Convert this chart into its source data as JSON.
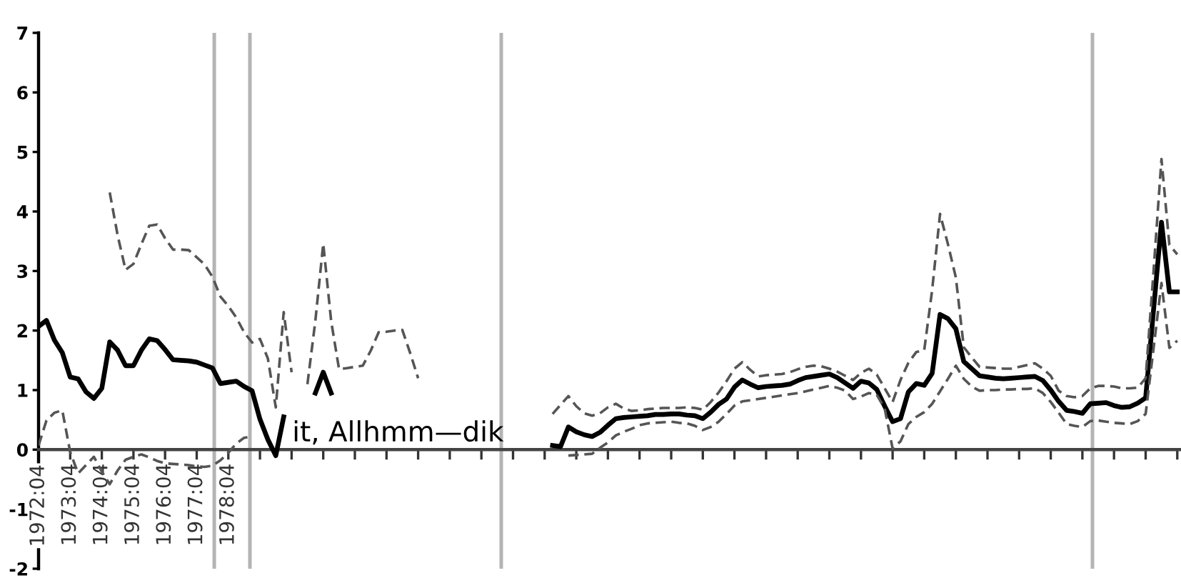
{
  "chart_data": {
    "type": "line",
    "categories": [
      "1972:04",
      null,
      null,
      null,
      "1973:04",
      null,
      null,
      null,
      "1974:04",
      null,
      null,
      null,
      "1975:04",
      null,
      null,
      null,
      "1976:04",
      null,
      null,
      null,
      "1977:04",
      null,
      null,
      null,
      "1978:04",
      null,
      null,
      null,
      null,
      null,
      null,
      null,
      null,
      null,
      null,
      null,
      null,
      null,
      null,
      null,
      null,
      null,
      null,
      null,
      null,
      null,
      null,
      null,
      null,
      null,
      null,
      null,
      null,
      null,
      null,
      null,
      null,
      null,
      null,
      null,
      null,
      null,
      null,
      null,
      null,
      null,
      null,
      null,
      null,
      null,
      null,
      null,
      null,
      null,
      null,
      null,
      null,
      null,
      null,
      null,
      null,
      null,
      null,
      null,
      null,
      null,
      null,
      null,
      null,
      null,
      null,
      null,
      null,
      null,
      null,
      null,
      null,
      null,
      null,
      null,
      null,
      null,
      null,
      null,
      null,
      null,
      null,
      null,
      null,
      null,
      null,
      null,
      null,
      null,
      null,
      null,
      null,
      null,
      null,
      null,
      null,
      null,
      null,
      null,
      null,
      null,
      null,
      null,
      null,
      null,
      null,
      null,
      null,
      null,
      null,
      null,
      null,
      null,
      null,
      null,
      null,
      null,
      null,
      null,
      null
    ],
    "ylim": [
      -2,
      7
    ],
    "yticks": [
      -2,
      -1,
      0,
      1,
      2,
      3,
      4,
      5,
      6,
      7
    ],
    "annotations": [
      "it, Allhmm—dik"
    ],
    "series": [
      {
        "color": "#000000",
        "line_style": "solid",
        "values": [
          2.07,
          2.17,
          1.84,
          1.63,
          1.22,
          1.19,
          0.97,
          0.86,
          1.03,
          1.81,
          1.67,
          1.41,
          1.41,
          1.67,
          1.86,
          1.83,
          1.68,
          1.51,
          1.5,
          1.49,
          1.47,
          1.42,
          1.37,
          1.11,
          1.13,
          1.15,
          1.06,
          0.99,
          0.51,
          0.17,
          -0.1,
          0.55,
          null,
          null,
          null,
          0.95,
          1.3,
          0.95,
          null,
          null,
          null,
          null,
          null,
          null,
          null,
          null,
          null,
          null,
          null,
          null,
          null,
          null,
          null,
          null,
          null,
          null,
          null,
          null,
          null,
          null,
          null,
          null,
          null,
          null,
          null,
          0.07,
          0.05,
          0.38,
          0.3,
          0.25,
          0.22,
          0.29,
          0.41,
          0.52,
          0.54,
          0.55,
          0.56,
          0.57,
          0.59,
          0.59,
          0.6,
          0.6,
          0.58,
          0.57,
          0.52,
          0.63,
          0.76,
          0.85,
          1.05,
          1.17,
          1.1,
          1.04,
          1.06,
          1.07,
          1.08,
          1.1,
          1.16,
          1.21,
          1.23,
          1.25,
          1.27,
          1.21,
          1.12,
          1.03,
          1.15,
          1.12,
          1.01,
          0.73,
          0.47,
          0.52,
          0.97,
          1.11,
          1.08,
          1.28,
          2.27,
          2.2,
          2.03,
          1.48,
          1.36,
          1.24,
          1.22,
          1.2,
          1.19,
          1.2,
          1.21,
          1.22,
          1.23,
          1.16,
          1.0,
          0.81,
          0.66,
          0.64,
          0.61,
          0.77,
          0.78,
          0.79,
          0.74,
          0.71,
          0.72,
          0.78,
          0.87,
          2.35,
          3.82,
          2.65,
          2.65
        ]
      },
      {
        "color": "#555555",
        "line_style": "dashed",
        "values": [
          null,
          null,
          null,
          null,
          null,
          null,
          null,
          null,
          null,
          4.32,
          3.6,
          3.02,
          3.12,
          3.45,
          3.76,
          3.78,
          3.55,
          3.36,
          3.36,
          3.35,
          3.23,
          3.11,
          2.9,
          2.57,
          2.41,
          2.22,
          1.97,
          1.8,
          1.86,
          1.53,
          0.71,
          2.31,
          1.3,
          null,
          1.1,
          2.16,
          3.46,
          2.16,
          1.35,
          1.37,
          1.39,
          1.41,
          1.66,
          1.97,
          1.98,
          2.0,
          2.01,
          1.62,
          1.2,
          null,
          null,
          null,
          null,
          null,
          null,
          null,
          null,
          null,
          null,
          null,
          null,
          null,
          null,
          null,
          null,
          0.6,
          0.75,
          0.9,
          0.73,
          0.61,
          0.57,
          0.61,
          0.71,
          0.77,
          0.69,
          0.65,
          0.66,
          0.68,
          0.69,
          0.7,
          0.7,
          0.7,
          0.71,
          0.7,
          0.67,
          0.8,
          0.96,
          1.15,
          1.36,
          1.47,
          1.34,
          1.23,
          1.25,
          1.26,
          1.27,
          1.3,
          1.35,
          1.39,
          1.41,
          1.4,
          1.36,
          1.31,
          1.24,
          1.17,
          1.29,
          1.36,
          1.26,
          1.03,
          0.8,
          1.17,
          1.46,
          1.64,
          1.67,
          2.68,
          3.96,
          3.45,
          2.89,
          1.72,
          1.55,
          1.39,
          1.38,
          1.37,
          1.36,
          1.36,
          1.39,
          1.42,
          1.45,
          1.36,
          1.24,
          0.99,
          0.9,
          0.88,
          0.9,
          1.03,
          1.07,
          1.07,
          1.06,
          1.03,
          1.03,
          1.04,
          1.2,
          3.0,
          4.88,
          3.44,
          3.28
        ]
      },
      {
        "color": "#555555",
        "line_style": "dashed",
        "values": [
          0.07,
          0.49,
          0.62,
          0.66,
          -0.04,
          -0.4,
          -0.26,
          -0.12,
          -0.37,
          -0.58,
          -0.35,
          -0.17,
          -0.12,
          -0.08,
          -0.13,
          -0.19,
          -0.23,
          -0.24,
          -0.25,
          -0.26,
          -0.28,
          -0.29,
          -0.27,
          -0.18,
          -0.05,
          0.1,
          0.2,
          0.22,
          null,
          null,
          null,
          null,
          null,
          null,
          null,
          null,
          null,
          null,
          null,
          null,
          null,
          null,
          null,
          null,
          null,
          null,
          null,
          null,
          null,
          null,
          null,
          null,
          null,
          null,
          null,
          null,
          null,
          null,
          null,
          null,
          null,
          null,
          null,
          null,
          null,
          null,
          null,
          -0.1,
          -0.09,
          -0.08,
          -0.07,
          0.03,
          0.12,
          0.24,
          0.3,
          0.35,
          0.41,
          0.44,
          0.45,
          0.46,
          0.47,
          0.45,
          0.44,
          0.4,
          0.33,
          0.38,
          0.47,
          0.6,
          0.74,
          0.81,
          0.83,
          0.85,
          0.87,
          0.89,
          0.91,
          0.93,
          0.95,
          0.98,
          1.01,
          1.04,
          1.07,
          1.04,
          0.99,
          0.85,
          0.89,
          0.95,
          0.92,
          0.69,
          0.02,
          0.14,
          0.43,
          0.55,
          0.63,
          0.77,
          0.98,
          1.19,
          1.41,
          1.19,
          1.06,
          0.99,
          1.0,
          1.0,
          1.01,
          1.01,
          1.02,
          1.02,
          1.03,
          0.95,
          0.8,
          0.62,
          0.43,
          0.4,
          0.38,
          0.48,
          0.49,
          0.47,
          0.45,
          0.44,
          0.43,
          0.48,
          0.6,
          1.7,
          2.8,
          1.71,
          1.83
        ]
      }
    ]
  }
}
